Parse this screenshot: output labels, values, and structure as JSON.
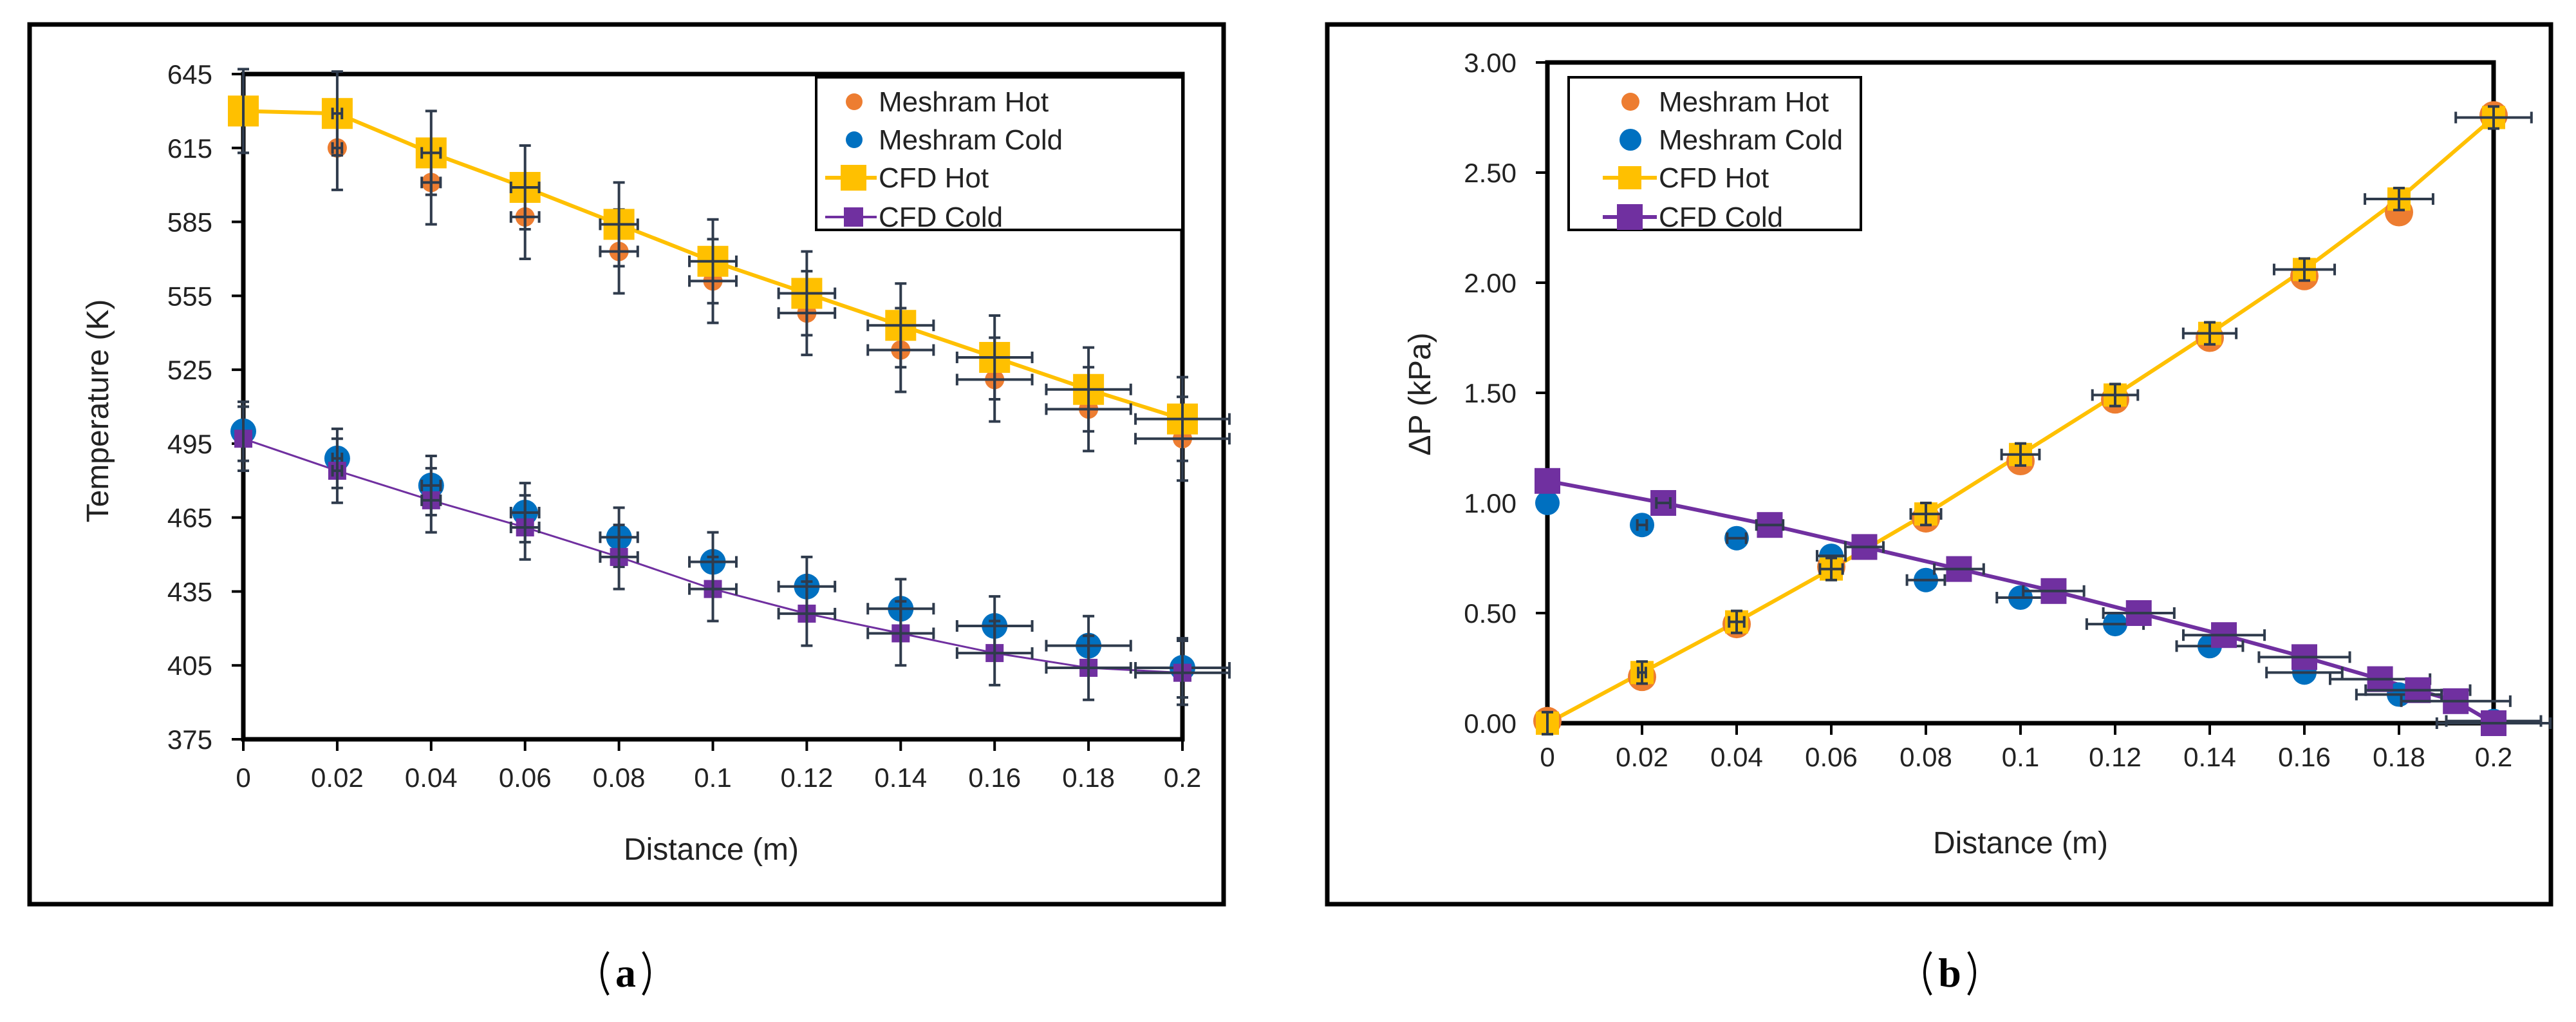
{
  "colors": {
    "meshram_hot": "#ED7D31",
    "meshram_cold": "#0070C0",
    "cfd_hot": "#FFC000",
    "cfd_cold": "#7030A0",
    "error_bar": "#2F3B4C"
  },
  "chart_data": [
    {
      "panel_label": "a",
      "type": "scatter",
      "xlabel": "Distance (m)",
      "ylabel": "Temperature (K)",
      "xlim": [
        0,
        0.2
      ],
      "ylim": [
        375,
        645
      ],
      "xticks": [
        "0",
        "0.02",
        "0.04",
        "0.06",
        "0.08",
        "0.1",
        "0.12",
        "0.14",
        "0.16",
        "0.18",
        "0.2"
      ],
      "yticks": [
        "375",
        "405",
        "435",
        "465",
        "495",
        "525",
        "555",
        "585",
        "615",
        "645"
      ],
      "legend_position": "top-right",
      "series": [
        {
          "name": "Meshram Hot",
          "kind": "points",
          "color_key": "meshram_hot",
          "x": [
            0.02,
            0.04,
            0.06,
            0.08,
            0.1,
            0.12,
            0.14,
            0.16,
            0.18,
            0.2
          ],
          "y": [
            615,
            601,
            587,
            573,
            561,
            548,
            533,
            521,
            509,
            497
          ],
          "yerr": 17,
          "xerr_frac": 0.05
        },
        {
          "name": "Meshram Cold",
          "kind": "points",
          "color_key": "meshram_cold",
          "x": [
            0,
            0.02,
            0.04,
            0.06,
            0.08,
            0.1,
            0.12,
            0.14,
            0.16,
            0.18,
            0.2
          ],
          "y": [
            500,
            489,
            478,
            467,
            457,
            447,
            437,
            428,
            421,
            413,
            404
          ],
          "yerr": 12,
          "xerr_frac": 0.05
        },
        {
          "name": "CFD Hot",
          "kind": "line",
          "color_key": "cfd_hot",
          "x": [
            0,
            0.02,
            0.04,
            0.06,
            0.08,
            0.1,
            0.12,
            0.14,
            0.16,
            0.18,
            0.2
          ],
          "y": [
            630,
            629,
            613,
            599,
            584,
            569,
            556,
            543,
            530,
            517,
            505
          ],
          "yerr": 17,
          "xerr_frac": 0.05
        },
        {
          "name": "CFD Cold",
          "kind": "line",
          "color_key": "cfd_cold",
          "x": [
            0,
            0.02,
            0.04,
            0.06,
            0.08,
            0.1,
            0.12,
            0.14,
            0.16,
            0.18,
            0.2
          ],
          "y": [
            497,
            484,
            472,
            461,
            449,
            436,
            426,
            418,
            410,
            404,
            402
          ],
          "yerr": 13,
          "xerr_frac": 0.05
        }
      ]
    },
    {
      "panel_label": "b",
      "type": "scatter",
      "xlabel": "Distance (m)",
      "ylabel": "ΔP (kPa)",
      "xlim": [
        0,
        0.2
      ],
      "ylim": [
        0,
        3
      ],
      "xticks": [
        "0",
        "0.02",
        "0.04",
        "0.06",
        "0.08",
        "0.1",
        "0.12",
        "0.14",
        "0.16",
        "0.18",
        "0.2"
      ],
      "yticks": [
        "0.00",
        "0.50",
        "1.00",
        "1.50",
        "2.00",
        "2.50",
        "3.00"
      ],
      "legend_position": "top-left",
      "series": [
        {
          "name": "Meshram Hot",
          "kind": "points",
          "color_key": "meshram_hot",
          "x": [
            0,
            0.02,
            0.04,
            0.06,
            0.08,
            0.1,
            0.12,
            0.14,
            0.16,
            0.18,
            0.2
          ],
          "y": [
            0.01,
            0.21,
            0.45,
            0.71,
            0.93,
            1.19,
            1.47,
            1.75,
            2.03,
            2.32,
            2.76
          ],
          "yerr": 0,
          "xerr_frac": 0
        },
        {
          "name": "Meshram Cold",
          "kind": "points",
          "color_key": "meshram_cold",
          "x": [
            0,
            0.02,
            0.04,
            0.06,
            0.08,
            0.1,
            0.12,
            0.14,
            0.16,
            0.18,
            0.2
          ],
          "y": [
            1.0,
            0.9,
            0.84,
            0.76,
            0.65,
            0.57,
            0.45,
            0.35,
            0.23,
            0.13,
            0.01
          ],
          "yerr": 0,
          "xerr_frac": 0.05
        },
        {
          "name": "CFD Hot",
          "kind": "line",
          "color_key": "cfd_hot",
          "x": [
            0,
            0.02,
            0.04,
            0.06,
            0.08,
            0.1,
            0.12,
            0.14,
            0.16,
            0.18,
            0.2
          ],
          "y": [
            0,
            0.23,
            0.46,
            0.7,
            0.95,
            1.22,
            1.49,
            1.77,
            2.06,
            2.38,
            2.75
          ],
          "yerr": 0.05,
          "xerr_frac": 0.04
        },
        {
          "name": "CFD Cold",
          "kind": "line",
          "color_key": "cfd_cold",
          "x": [
            0,
            0.0245,
            0.047,
            0.067,
            0.087,
            0.107,
            0.125,
            0.143,
            0.16,
            0.176,
            0.184,
            0.192,
            0.2
          ],
          "y": [
            1.1,
            1.0,
            0.9,
            0.8,
            0.7,
            0.6,
            0.5,
            0.4,
            0.3,
            0.2,
            0.15,
            0.1,
            0.0
          ],
          "yerr": 0,
          "xerr_frac": 0.06
        }
      ]
    }
  ]
}
